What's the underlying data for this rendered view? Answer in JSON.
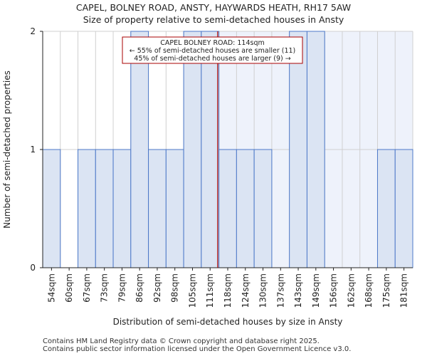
{
  "chart_data": {
    "type": "bar",
    "title": "CAPEL, BOLNEY ROAD, ANSTY, HAYWARDS HEATH, RH17 5AW",
    "subtitle": "Size of property relative to semi-detached houses in Ansty",
    "xlabel": "Distribution of semi-detached houses by size in Ansty",
    "ylabel": "Number of semi-detached properties",
    "categories": [
      "54sqm",
      "60sqm",
      "67sqm",
      "73sqm",
      "79sqm",
      "86sqm",
      "92sqm",
      "98sqm",
      "105sqm",
      "111sqm",
      "118sqm",
      "124sqm",
      "130sqm",
      "137sqm",
      "143sqm",
      "149sqm",
      "156sqm",
      "162sqm",
      "168sqm",
      "175sqm",
      "181sqm"
    ],
    "values": [
      1,
      0,
      1,
      1,
      1,
      2,
      1,
      1,
      2,
      2,
      1,
      1,
      1,
      0,
      2,
      2,
      0,
      0,
      0,
      1,
      1
    ],
    "ylim": [
      0,
      2
    ],
    "yticks": [
      "0",
      "1",
      "2"
    ],
    "grid": true,
    "marker": {
      "value_sqm": 114,
      "label_lines": [
        "CAPEL BOLNEY ROAD: 114sqm",
        "← 55% of semi-detached houses are smaller (11)",
        "45% of semi-detached houses are larger (9) →"
      ]
    },
    "colors": {
      "bar_fill": "#dbe4f3",
      "bar_stroke": "#4c78c8",
      "highlight_bg": "#eef2fb",
      "marker_line": "#aa0000",
      "annotation_border": "#aa0000",
      "grid": "#d0d0d0",
      "axis": "#222222"
    }
  },
  "footer": {
    "line1": "Contains HM Land Registry data © Crown copyright and database right 2025.",
    "line2": "Contains public sector information licensed under the Open Government Licence v3.0."
  }
}
